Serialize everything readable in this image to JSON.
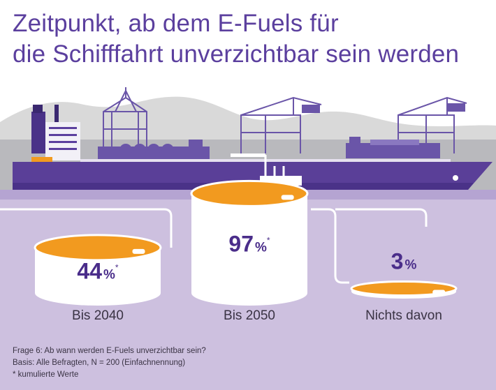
{
  "title_line1": "Zeitpunkt, ab dem E-Fuels für",
  "title_line2": "die Schifffahrt unverzichtbar sein werden",
  "chart_data": {
    "type": "bar",
    "categories": [
      "Bis 2040",
      "Bis 2050",
      "Nichts davon"
    ],
    "values": [
      44,
      97,
      3
    ],
    "value_labels": [
      "44",
      "97",
      "3"
    ],
    "unit": "%",
    "cumulative_marker": [
      "*",
      "*",
      ""
    ],
    "ylim": [
      0,
      100
    ]
  },
  "footer": {
    "question": "Frage 6: Ab wann werden E-Fuels unverzichtbar sein?",
    "base": "Basis: Alle Befragten, N = 200 (Einfachnennung)",
    "note": "* kumulierte Werte"
  },
  "colors": {
    "accent_purple": "#5b3f9e",
    "ship_hull": "#5a3f98",
    "orange": "#f29a1f",
    "lavender_ground": "#cdc0df",
    "hill_gray": "#d6d6d6"
  }
}
